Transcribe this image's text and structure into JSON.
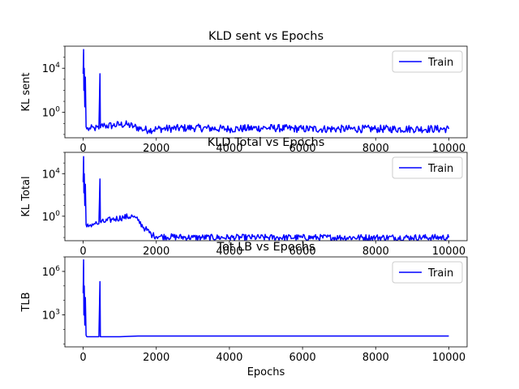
{
  "chart_data": [
    {
      "type": "line",
      "title": "KLD sent vs Epochs",
      "ylabel": "KL sent",
      "xlabel": "",
      "yscale": "log",
      "xlim": [
        -500,
        10500
      ],
      "xticks": [
        0,
        2000,
        4000,
        6000,
        8000,
        10000
      ],
      "ylim_exp": [
        -2.3,
        6.0
      ],
      "yticks": [
        {
          "exp": 4,
          "label": "10^4"
        },
        {
          "exp": 0,
          "label": "10^0"
        }
      ],
      "legend": {
        "position": "top-right",
        "entries": [
          "Train"
        ]
      },
      "series": [
        {
          "name": "Train",
          "color": "#0000ff",
          "points": [
            [
              0,
              3.5
            ],
            [
              12,
              5.7
            ],
            [
              20,
              2.0
            ],
            [
              30,
              4.0
            ],
            [
              45,
              0.5
            ],
            [
              60,
              3.2
            ],
            [
              80,
              -1.3
            ],
            [
              100,
              -1.5
            ],
            [
              200,
              -1.5
            ],
            [
              300,
              -1.4
            ],
            [
              430,
              -1.5
            ],
            [
              460,
              3.5
            ],
            [
              470,
              -1.4
            ],
            [
              490,
              -1.2
            ],
            [
              600,
              -1.2
            ],
            [
              800,
              -1.2
            ],
            [
              1000,
              -1.1
            ],
            [
              1200,
              -1.1
            ],
            [
              1400,
              -1.3
            ],
            [
              1600,
              -1.5
            ],
            [
              1800,
              -1.6
            ],
            [
              2000,
              -1.5
            ],
            [
              3000,
              -1.4
            ],
            [
              4000,
              -1.5
            ],
            [
              5000,
              -1.4
            ],
            [
              6000,
              -1.5
            ],
            [
              7000,
              -1.5
            ],
            [
              8000,
              -1.5
            ],
            [
              9000,
              -1.5
            ],
            [
              10000,
              -1.5
            ]
          ],
          "noise": 0.35
        }
      ]
    },
    {
      "type": "line",
      "title": "KLD Total vs Epochs",
      "ylabel": "KL Total",
      "xlabel": "",
      "yscale": "log",
      "xlim": [
        -500,
        10500
      ],
      "xticks": [
        0,
        2000,
        4000,
        6000,
        8000,
        10000
      ],
      "ylim_exp": [
        -2.3,
        6.0
      ],
      "yticks": [
        {
          "exp": 4,
          "label": "10^4"
        },
        {
          "exp": 0,
          "label": "10^0"
        }
      ],
      "legend": {
        "position": "top-right",
        "entries": [
          "Train"
        ]
      },
      "series": [
        {
          "name": "Train",
          "color": "#0000ff",
          "points": [
            [
              0,
              3.2
            ],
            [
              12,
              5.6
            ],
            [
              20,
              2.2
            ],
            [
              30,
              4.0
            ],
            [
              45,
              1.0
            ],
            [
              60,
              3.0
            ],
            [
              80,
              -0.8
            ],
            [
              100,
              -1.0
            ],
            [
              200,
              -0.8
            ],
            [
              300,
              -0.7
            ],
            [
              430,
              -0.7
            ],
            [
              460,
              3.5
            ],
            [
              470,
              -0.5
            ],
            [
              490,
              -0.6
            ],
            [
              800,
              -0.3
            ],
            [
              1100,
              -0.1
            ],
            [
              1350,
              0.0
            ],
            [
              1500,
              -0.4
            ],
            [
              1700,
              -1.2
            ],
            [
              1900,
              -1.8
            ],
            [
              2100,
              -1.9
            ],
            [
              3000,
              -2.0
            ],
            [
              4000,
              -2.0
            ],
            [
              5000,
              -2.0
            ],
            [
              6000,
              -2.0
            ],
            [
              7000,
              -2.0
            ],
            [
              8000,
              -2.0
            ],
            [
              9000,
              -2.0
            ],
            [
              10000,
              -2.0
            ]
          ],
          "noise": 0.3
        }
      ]
    },
    {
      "type": "line",
      "title": "Tot LB vs Epochs",
      "ylabel": "TLB",
      "xlabel": "Epochs",
      "yscale": "log",
      "xlim": [
        -500,
        10500
      ],
      "xticks": [
        0,
        2000,
        4000,
        6000,
        8000,
        10000
      ],
      "ylim_exp": [
        0.8,
        7.0
      ],
      "yticks": [
        {
          "exp": 6,
          "label": "10^6"
        },
        {
          "exp": 3,
          "label": "10^3"
        }
      ],
      "legend": {
        "position": "top-right",
        "entries": [
          "Train"
        ]
      },
      "series": [
        {
          "name": "Train",
          "color": "#0000ff",
          "points": [
            [
              0,
              4.5
            ],
            [
              12,
              6.8
            ],
            [
              20,
              3.0
            ],
            [
              30,
              5.0
            ],
            [
              45,
              2.3
            ],
            [
              60,
              4.2
            ],
            [
              80,
              1.6
            ],
            [
              100,
              1.5
            ],
            [
              430,
              1.5
            ],
            [
              460,
              5.3
            ],
            [
              470,
              1.5
            ],
            [
              490,
              1.5
            ],
            [
              1000,
              1.5
            ],
            [
              1500,
              1.55
            ],
            [
              2000,
              1.55
            ],
            [
              4000,
              1.55
            ],
            [
              6000,
              1.55
            ],
            [
              8000,
              1.55
            ],
            [
              10000,
              1.55
            ]
          ],
          "noise": 0
        }
      ]
    }
  ]
}
